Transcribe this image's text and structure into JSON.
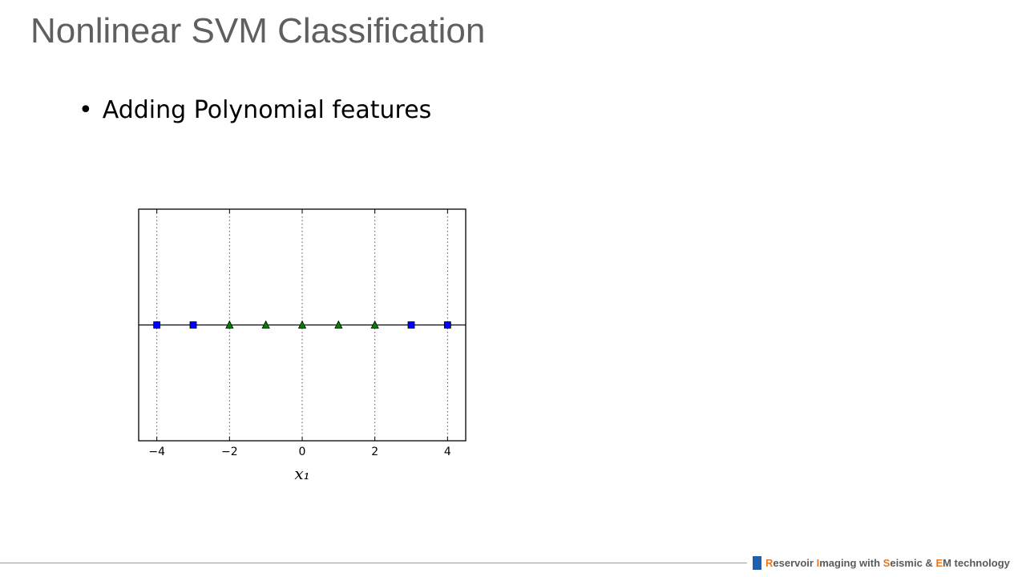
{
  "slide": {
    "title": "Nonlinear SVM Classification",
    "bullet": "Adding Polynomial features"
  },
  "footer": {
    "parts": [
      {
        "text": "R",
        "accent": true
      },
      {
        "text": "eservoir ",
        "accent": false
      },
      {
        "text": "I",
        "accent": true
      },
      {
        "text": "maging with ",
        "accent": false
      },
      {
        "text": "S",
        "accent": true
      },
      {
        "text": "eismic & ",
        "accent": false
      },
      {
        "text": "E",
        "accent": true
      },
      {
        "text": "M technology",
        "accent": false
      }
    ],
    "accent_color": "#e87722",
    "square_color": "#1f5fae"
  },
  "chart_data": {
    "type": "scatter",
    "xlabel": "x₁",
    "ylabel": "",
    "xlim": [
      -4.5,
      4.5
    ],
    "ylim": [
      -1,
      1
    ],
    "grid": "vertical dotted",
    "x_ticks": [
      -4,
      -2,
      0,
      2,
      4
    ],
    "x_tick_labels": [
      "−4",
      "−2",
      "0",
      "2",
      "4"
    ],
    "series": [
      {
        "marker": "square",
        "color": "#0000ff",
        "x": [
          -4,
          -3,
          3,
          4
        ],
        "y": [
          0,
          0,
          0,
          0
        ]
      },
      {
        "marker": "triangle",
        "color": "#008000",
        "x": [
          -2,
          -1,
          0,
          1,
          2
        ],
        "y": [
          0,
          0,
          0,
          0,
          0
        ]
      }
    ]
  }
}
